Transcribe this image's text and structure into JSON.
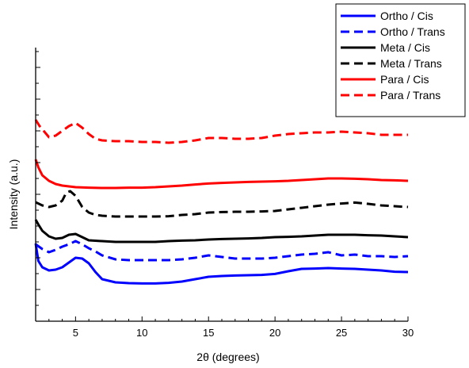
{
  "chart_data": {
    "type": "line",
    "title": "",
    "xlabel": "2θ (degrees)",
    "ylabel": "Intensity (a.u.)",
    "xlim": [
      2,
      30
    ],
    "xticks": [
      5,
      10,
      15,
      20,
      25,
      30
    ],
    "y_tick_labels": false,
    "legend_position": "top-right",
    "series": [
      {
        "name": "Ortho / Cis",
        "color": "#0000ff",
        "dash": "solid",
        "x": [
          2.0,
          2.2,
          2.5,
          3.0,
          3.5,
          4.0,
          4.5,
          5.0,
          5.5,
          6.0,
          6.5,
          7.0,
          8.0,
          9.0,
          10.0,
          11.0,
          12.0,
          13.0,
          14.0,
          15.0,
          16.0,
          17.0,
          18.0,
          19.0,
          20.0,
          21.0,
          22.0,
          23.0,
          24.0,
          25.0,
          26.0,
          27.0,
          28.0,
          29.0,
          30.0
        ],
        "y": [
          4.9,
          3.8,
          3.4,
          3.2,
          3.25,
          3.4,
          3.7,
          4.0,
          3.95,
          3.65,
          3.1,
          2.65,
          2.45,
          2.4,
          2.38,
          2.38,
          2.42,
          2.5,
          2.65,
          2.8,
          2.85,
          2.88,
          2.9,
          2.92,
          2.98,
          3.15,
          3.3,
          3.32,
          3.35,
          3.32,
          3.3,
          3.25,
          3.2,
          3.12,
          3.1
        ]
      },
      {
        "name": "Ortho / Trans",
        "color": "#0000ff",
        "dash": "dash",
        "x": [
          2.0,
          2.5,
          3.0,
          3.5,
          4.0,
          4.5,
          5.0,
          5.5,
          6.0,
          6.5,
          7.0,
          8.0,
          9.0,
          10.0,
          11.0,
          12.0,
          13.0,
          14.0,
          15.0,
          16.0,
          17.0,
          18.0,
          19.0,
          20.0,
          21.0,
          22.0,
          23.0,
          24.0,
          25.0,
          26.0,
          27.0,
          28.0,
          29.0,
          30.0
        ],
        "y": [
          4.85,
          4.55,
          4.35,
          4.5,
          4.7,
          4.85,
          5.05,
          4.85,
          4.6,
          4.4,
          4.15,
          3.9,
          3.85,
          3.85,
          3.85,
          3.85,
          3.9,
          4.0,
          4.15,
          4.05,
          3.95,
          3.95,
          3.95,
          4.0,
          4.1,
          4.2,
          4.25,
          4.35,
          4.15,
          4.2,
          4.1,
          4.1,
          4.05,
          4.1
        ]
      },
      {
        "name": "Meta / Cis",
        "color": "#000000",
        "dash": "solid",
        "x": [
          2.0,
          2.2,
          2.5,
          3.0,
          3.5,
          4.0,
          4.5,
          5.0,
          5.5,
          6.0,
          7.0,
          8.0,
          9.0,
          10.0,
          11.0,
          12.0,
          13.0,
          14.0,
          15.0,
          16.0,
          17.0,
          18.0,
          19.0,
          20.0,
          21.0,
          22.0,
          23.0,
          24.0,
          25.0,
          26.0,
          27.0,
          28.0,
          29.0,
          30.0
        ],
        "y": [
          6.4,
          6.1,
          5.7,
          5.35,
          5.2,
          5.25,
          5.45,
          5.5,
          5.3,
          5.1,
          5.05,
          5.0,
          5.0,
          5.0,
          5.0,
          5.05,
          5.08,
          5.1,
          5.15,
          5.18,
          5.2,
          5.22,
          5.25,
          5.3,
          5.32,
          5.35,
          5.4,
          5.45,
          5.45,
          5.45,
          5.42,
          5.4,
          5.35,
          5.3
        ]
      },
      {
        "name": "Meta / Trans",
        "color": "#000000",
        "dash": "dash",
        "x": [
          2.0,
          2.5,
          3.0,
          3.5,
          4.0,
          4.3,
          4.6,
          5.0,
          5.5,
          6.0,
          6.5,
          7.0,
          8.0,
          9.0,
          10.0,
          11.0,
          12.0,
          13.0,
          14.0,
          15.0,
          16.0,
          17.0,
          18.0,
          19.0,
          20.0,
          21.0,
          22.0,
          23.0,
          24.0,
          25.0,
          26.0,
          27.0,
          28.0,
          29.0,
          30.0
        ],
        "y": [
          7.5,
          7.3,
          7.2,
          7.3,
          7.6,
          8.1,
          8.2,
          7.9,
          7.2,
          6.85,
          6.7,
          6.65,
          6.6,
          6.6,
          6.6,
          6.6,
          6.62,
          6.7,
          6.75,
          6.85,
          6.88,
          6.9,
          6.9,
          6.92,
          6.95,
          7.05,
          7.15,
          7.25,
          7.35,
          7.42,
          7.48,
          7.4,
          7.3,
          7.25,
          7.2
        ]
      },
      {
        "name": "Para / Cis",
        "color": "#ff0000",
        "dash": "solid",
        "x": [
          2.0,
          2.2,
          2.5,
          3.0,
          3.5,
          4.0,
          5.0,
          6.0,
          7.0,
          8.0,
          9.0,
          10.0,
          11.0,
          12.0,
          13.0,
          14.0,
          15.0,
          16.0,
          17.0,
          18.0,
          19.0,
          20.0,
          21.0,
          22.0,
          23.0,
          24.0,
          25.0,
          26.0,
          27.0,
          28.0,
          29.0,
          30.0
        ],
        "y": [
          10.2,
          9.7,
          9.2,
          8.85,
          8.65,
          8.55,
          8.45,
          8.42,
          8.4,
          8.4,
          8.42,
          8.42,
          8.45,
          8.5,
          8.55,
          8.62,
          8.68,
          8.72,
          8.75,
          8.78,
          8.8,
          8.82,
          8.85,
          8.9,
          8.95,
          9.0,
          9.0,
          8.98,
          8.95,
          8.9,
          8.88,
          8.85
        ]
      },
      {
        "name": "Para / Trans",
        "color": "#ff0000",
        "dash": "dash",
        "x": [
          2.0,
          2.3,
          2.7,
          3.0,
          3.5,
          4.0,
          4.5,
          5.0,
          5.5,
          6.0,
          6.5,
          7.0,
          8.0,
          9.0,
          10.0,
          11.0,
          12.0,
          13.0,
          14.0,
          15.0,
          16.0,
          17.0,
          18.0,
          19.0,
          20.0,
          21.0,
          22.0,
          23.0,
          24.0,
          25.0,
          26.0,
          27.0,
          28.0,
          29.0,
          30.0
        ],
        "y": [
          12.7,
          12.3,
          11.9,
          11.6,
          11.7,
          12.0,
          12.3,
          12.5,
          12.2,
          11.8,
          11.5,
          11.4,
          11.35,
          11.35,
          11.3,
          11.3,
          11.25,
          11.3,
          11.4,
          11.55,
          11.55,
          11.5,
          11.5,
          11.55,
          11.7,
          11.8,
          11.85,
          11.9,
          11.9,
          11.95,
          11.9,
          11.85,
          11.75,
          11.75,
          11.75
        ]
      }
    ]
  }
}
